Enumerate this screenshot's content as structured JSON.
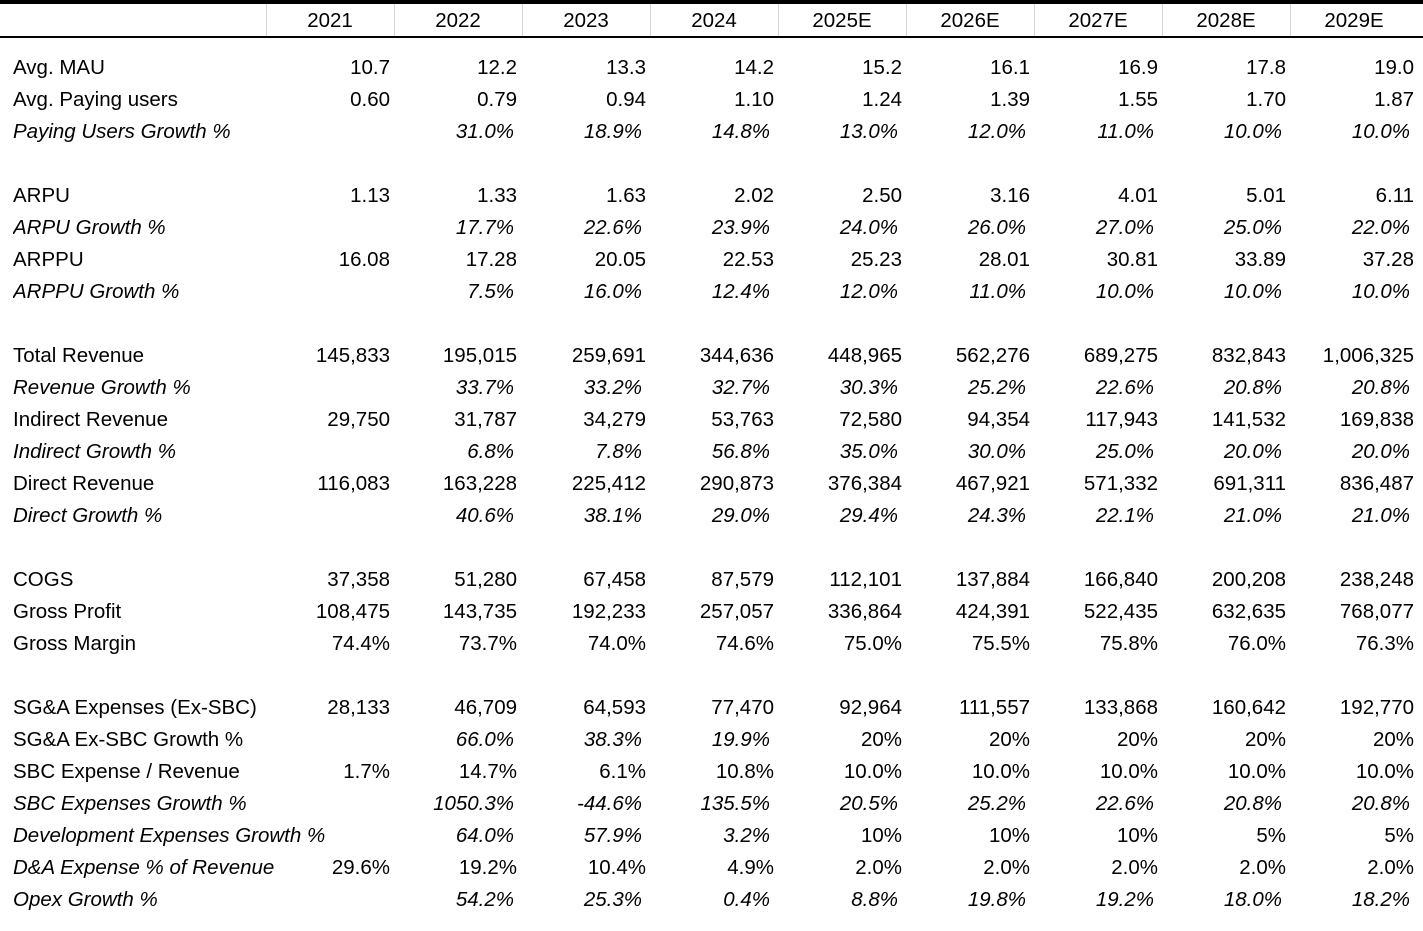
{
  "years": [
    "2021",
    "2022",
    "2023",
    "2024",
    "2025E",
    "2026E",
    "2027E",
    "2028E",
    "2029E"
  ],
  "rows": [
    {
      "label": "Avg. MAU",
      "italic": false,
      "values": [
        "10.7",
        "12.2",
        "13.3",
        "14.2",
        "15.2",
        "16.1",
        "16.9",
        "17.8",
        "19.0"
      ]
    },
    {
      "label": "Avg. Paying users",
      "italic": false,
      "values": [
        "0.60",
        "0.79",
        "0.94",
        "1.10",
        "1.24",
        "1.39",
        "1.55",
        "1.70",
        "1.87"
      ]
    },
    {
      "label": "Paying Users Growth %",
      "italic": true,
      "values": [
        "",
        "31.0%",
        "18.9%",
        "14.8%",
        "13.0%",
        "12.0%",
        "11.0%",
        "10.0%",
        "10.0%"
      ]
    },
    {
      "blank": true
    },
    {
      "label": "ARPU",
      "italic": false,
      "values": [
        "1.13",
        "1.33",
        "1.63",
        "2.02",
        "2.50",
        "3.16",
        "4.01",
        "5.01",
        "6.11"
      ]
    },
    {
      "label": "ARPU Growth %",
      "italic": true,
      "values": [
        "",
        "17.7%",
        "22.6%",
        "23.9%",
        "24.0%",
        "26.0%",
        "27.0%",
        "25.0%",
        "22.0%"
      ]
    },
    {
      "label": "ARPPU",
      "italic": false,
      "values": [
        "16.08",
        "17.28",
        "20.05",
        "22.53",
        "25.23",
        "28.01",
        "30.81",
        "33.89",
        "37.28"
      ]
    },
    {
      "label": "ARPPU Growth %",
      "italic": true,
      "values": [
        "",
        "7.5%",
        "16.0%",
        "12.4%",
        "12.0%",
        "11.0%",
        "10.0%",
        "10.0%",
        "10.0%"
      ]
    },
    {
      "blank": true
    },
    {
      "label": "Total Revenue",
      "italic": false,
      "values": [
        "145,833",
        "195,015",
        "259,691",
        "344,636",
        "448,965",
        "562,276",
        "689,275",
        "832,843",
        "1,006,325"
      ]
    },
    {
      "label": "Revenue Growth %",
      "italic": true,
      "values": [
        "",
        "33.7%",
        "33.2%",
        "32.7%",
        "30.3%",
        "25.2%",
        "22.6%",
        "20.8%",
        "20.8%"
      ]
    },
    {
      "label": "Indirect Revenue",
      "italic": false,
      "values": [
        "29,750",
        "31,787",
        "34,279",
        "53,763",
        "72,580",
        "94,354",
        "117,943",
        "141,532",
        "169,838"
      ]
    },
    {
      "label": "Indirect Growth %",
      "italic": true,
      "values": [
        "",
        "6.8%",
        "7.8%",
        "56.8%",
        "35.0%",
        "30.0%",
        "25.0%",
        "20.0%",
        "20.0%"
      ]
    },
    {
      "label": "Direct Revenue",
      "italic": false,
      "values": [
        "116,083",
        "163,228",
        "225,412",
        "290,873",
        "376,384",
        "467,921",
        "571,332",
        "691,311",
        "836,487"
      ]
    },
    {
      "label": "Direct Growth %",
      "italic": true,
      "values": [
        "",
        "40.6%",
        "38.1%",
        "29.0%",
        "29.4%",
        "24.3%",
        "22.1%",
        "21.0%",
        "21.0%"
      ]
    },
    {
      "blank": true
    },
    {
      "label": "COGS",
      "italic": false,
      "values": [
        "37,358",
        "51,280",
        "67,458",
        "87,579",
        "112,101",
        "137,884",
        "166,840",
        "200,208",
        "238,248"
      ]
    },
    {
      "label": "Gross Profit",
      "italic": false,
      "values": [
        "108,475",
        "143,735",
        "192,233",
        "257,057",
        "336,864",
        "424,391",
        "522,435",
        "632,635",
        "768,077"
      ]
    },
    {
      "label": "Gross Margin",
      "italic": false,
      "values": [
        "74.4%",
        "73.7%",
        "74.0%",
        "74.6%",
        "75.0%",
        "75.5%",
        "75.8%",
        "76.0%",
        "76.3%"
      ]
    },
    {
      "blank": true
    },
    {
      "label": "SG&A Expenses (Ex-SBC)",
      "italic": false,
      "values": [
        "28,133",
        "46,709",
        "64,593",
        "77,470",
        "92,964",
        "111,557",
        "133,868",
        "160,642",
        "192,770"
      ]
    },
    {
      "label": "SG&A Ex-SBC Growth %",
      "italic": false,
      "values": [
        "",
        "66.0%",
        "38.3%",
        "19.9%",
        "20%",
        "20%",
        "20%",
        "20%",
        "20%"
      ],
      "italic_cells": [
        false,
        true,
        true,
        true,
        false,
        false,
        false,
        false,
        false
      ]
    },
    {
      "label": "SBC Expense / Revenue",
      "italic": false,
      "values": [
        "1.7%",
        "14.7%",
        "6.1%",
        "10.8%",
        "10.0%",
        "10.0%",
        "10.0%",
        "10.0%",
        "10.0%"
      ]
    },
    {
      "label": "SBC Expenses Growth %",
      "italic": true,
      "values": [
        "",
        "1050.3%",
        "-44.6%",
        "135.5%",
        "20.5%",
        "25.2%",
        "22.6%",
        "20.8%",
        "20.8%"
      ]
    },
    {
      "label": "Development Expenses Growth %",
      "italic": true,
      "values": [
        "",
        "64.0%",
        "57.9%",
        "3.2%",
        "10%",
        "10%",
        "10%",
        "5%",
        "5%"
      ],
      "italic_cells": [
        false,
        true,
        true,
        true,
        false,
        false,
        false,
        false,
        false
      ]
    },
    {
      "label": "D&A Expense % of Revenue",
      "italic": true,
      "values": [
        "29.6%",
        "19.2%",
        "10.4%",
        "4.9%",
        "2.0%",
        "2.0%",
        "2.0%",
        "2.0%",
        "2.0%"
      ],
      "italic_cells": [
        false,
        false,
        false,
        false,
        false,
        false,
        false,
        false,
        false
      ]
    },
    {
      "label": "Opex Growth %",
      "italic": true,
      "values": [
        "",
        "54.2%",
        "25.3%",
        "0.4%",
        "8.8%",
        "19.8%",
        "19.2%",
        "18.0%",
        "18.2%"
      ]
    }
  ]
}
